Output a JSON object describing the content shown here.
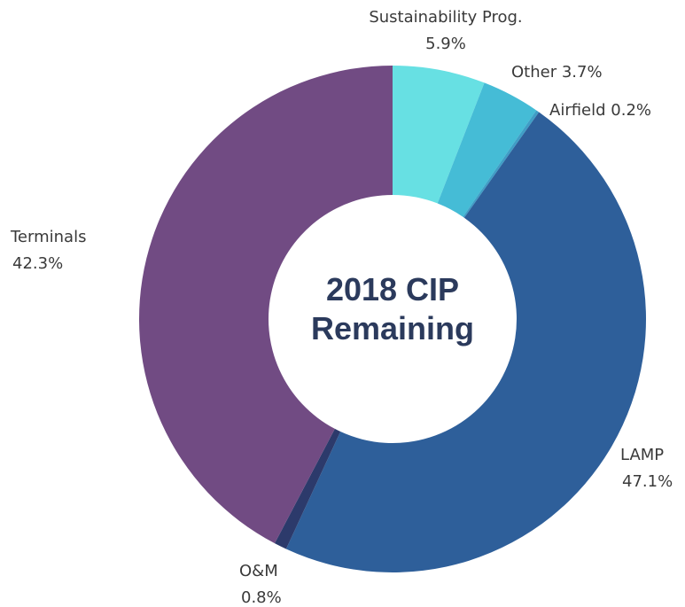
{
  "chart_data": {
    "type": "donut",
    "title": "2018 CIP Remaining",
    "categories": [
      "Sustainability Prog.",
      "Other",
      "Airfield",
      "LAMP",
      "O&M",
      "Terminals"
    ],
    "values": [
      5.9,
      3.7,
      0.2,
      47.1,
      0.8,
      42.3
    ],
    "value_labels": [
      "5.9%",
      "3.7%",
      "0.2%",
      "47.1%",
      "0.8%",
      "42.3%"
    ],
    "colors": [
      "#67e0e3",
      "#45bcd6",
      "#3f9ec6",
      "#2e5f9a",
      "#2c3a6b",
      "#714b83"
    ]
  }
}
